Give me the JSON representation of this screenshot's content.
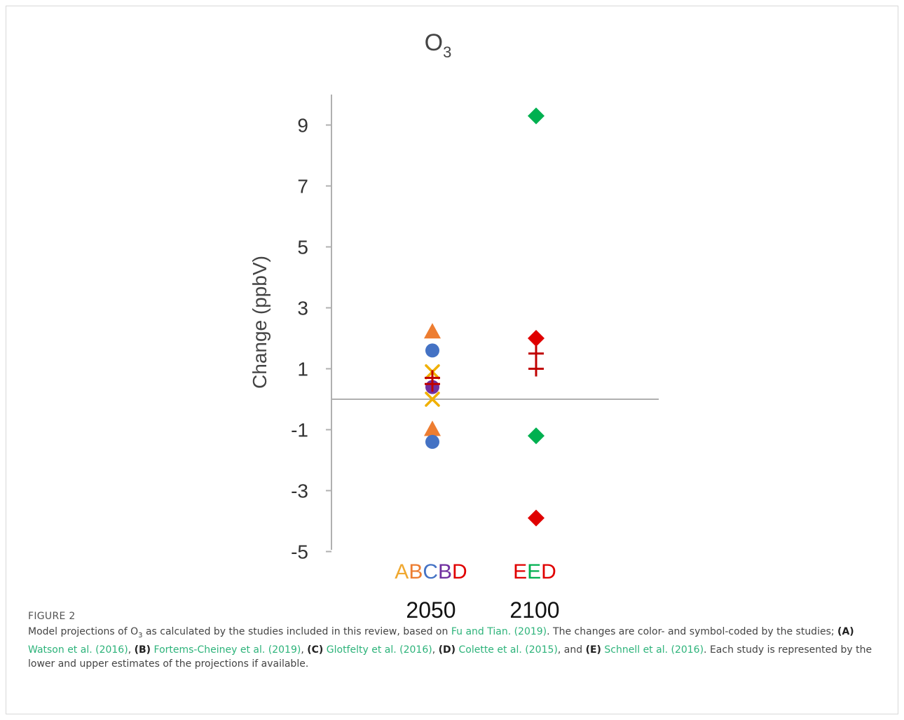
{
  "figure": {
    "label": "FIGURE 2",
    "caption_parts": [
      {
        "t": "text",
        "v": "Model projections of O"
      },
      {
        "t": "sub",
        "v": "3"
      },
      {
        "t": "text",
        "v": " as calculated by the studies included in this review, based on "
      },
      {
        "t": "link",
        "v": "Fu and Tian. (2019)"
      },
      {
        "t": "text",
        "v": ". The changes are color- and symbol-coded by the studies; "
      },
      {
        "t": "bold",
        "v": "(A)"
      },
      {
        "t": "text",
        "v": " "
      },
      {
        "t": "link",
        "v": "Watson et al. (2016)"
      },
      {
        "t": "text",
        "v": ", "
      },
      {
        "t": "bold",
        "v": "(B)"
      },
      {
        "t": "text",
        "v": " "
      },
      {
        "t": "link",
        "v": "Fortems-Cheiney et al. (2019)"
      },
      {
        "t": "text",
        "v": ", "
      },
      {
        "t": "bold",
        "v": "(C)"
      },
      {
        "t": "text",
        "v": " "
      },
      {
        "t": "link",
        "v": "Glotfelty et al. (2016)"
      },
      {
        "t": "text",
        "v": ", "
      },
      {
        "t": "bold",
        "v": "(D)"
      },
      {
        "t": "text",
        "v": " "
      },
      {
        "t": "link",
        "v": "Colette et al. (2015)"
      },
      {
        "t": "text",
        "v": ", and "
      },
      {
        "t": "bold",
        "v": "(E)"
      },
      {
        "t": "text",
        "v": " "
      },
      {
        "t": "link",
        "v": "Schnell et al. (2016)"
      },
      {
        "t": "text",
        "v": ". Each study is represented by the lower and upper estimates of the projections if available."
      }
    ]
  },
  "colors": {
    "A": "#f0a830",
    "B": "#ed7d31",
    "C": "#4472c4",
    "D": "#7030a0",
    "D_red": "#e00000",
    "E": "#00b050",
    "plus": "#c00000",
    "axis": "#b0b0b0",
    "text": "#444444"
  },
  "chart_data": {
    "type": "scatter",
    "title_main": "O",
    "title_sub": "3",
    "ylabel": "Change (ppbV)",
    "ylim": [
      -5,
      10
    ],
    "yticks": [
      9,
      7,
      5,
      3,
      1,
      -1,
      -3,
      -5
    ],
    "ytick_labels": [
      "9",
      "7",
      "5",
      "3",
      "1",
      "-1",
      "-3",
      "-5"
    ],
    "categories": [
      "2050",
      "2100"
    ],
    "category_study_letters": [
      [
        {
          "letter": "A",
          "color": "#f0a830"
        },
        {
          "letter": "B",
          "color": "#ed7d31"
        },
        {
          "letter": "C",
          "color": "#4472c4"
        },
        {
          "letter": "B",
          "color": "#7030a0"
        },
        {
          "letter": "D",
          "color": "#e00000"
        }
      ],
      [
        {
          "letter": "E",
          "color": "#e00000"
        },
        {
          "letter": "E",
          "color": "#00b050"
        },
        {
          "letter": "D",
          "color": "#e00000"
        }
      ]
    ],
    "series": [
      {
        "category": "2050",
        "marker": "triangle",
        "color": "#ed7d31",
        "values": [
          2.2,
          -1.0
        ]
      },
      {
        "category": "2050",
        "marker": "circle",
        "color": "#4472c4",
        "values": [
          1.6,
          -1.4
        ]
      },
      {
        "category": "2050",
        "marker": "x",
        "color": "#f0b000",
        "values": [
          0.9,
          0.0
        ]
      },
      {
        "category": "2050",
        "marker": "circle",
        "color": "#7030a0",
        "values": [
          0.4
        ]
      },
      {
        "category": "2050",
        "marker": "plus",
        "color": "#c00000",
        "values": [
          0.7,
          0.5
        ]
      },
      {
        "category": "2100",
        "marker": "diamond",
        "color": "#00b050",
        "values": [
          9.3,
          -1.2
        ]
      },
      {
        "category": "2100",
        "marker": "diamond",
        "color": "#e00000",
        "values": [
          2.0,
          -3.9
        ]
      },
      {
        "category": "2100",
        "marker": "plus",
        "color": "#c00000",
        "values": [
          1.5,
          1.0
        ]
      }
    ]
  }
}
